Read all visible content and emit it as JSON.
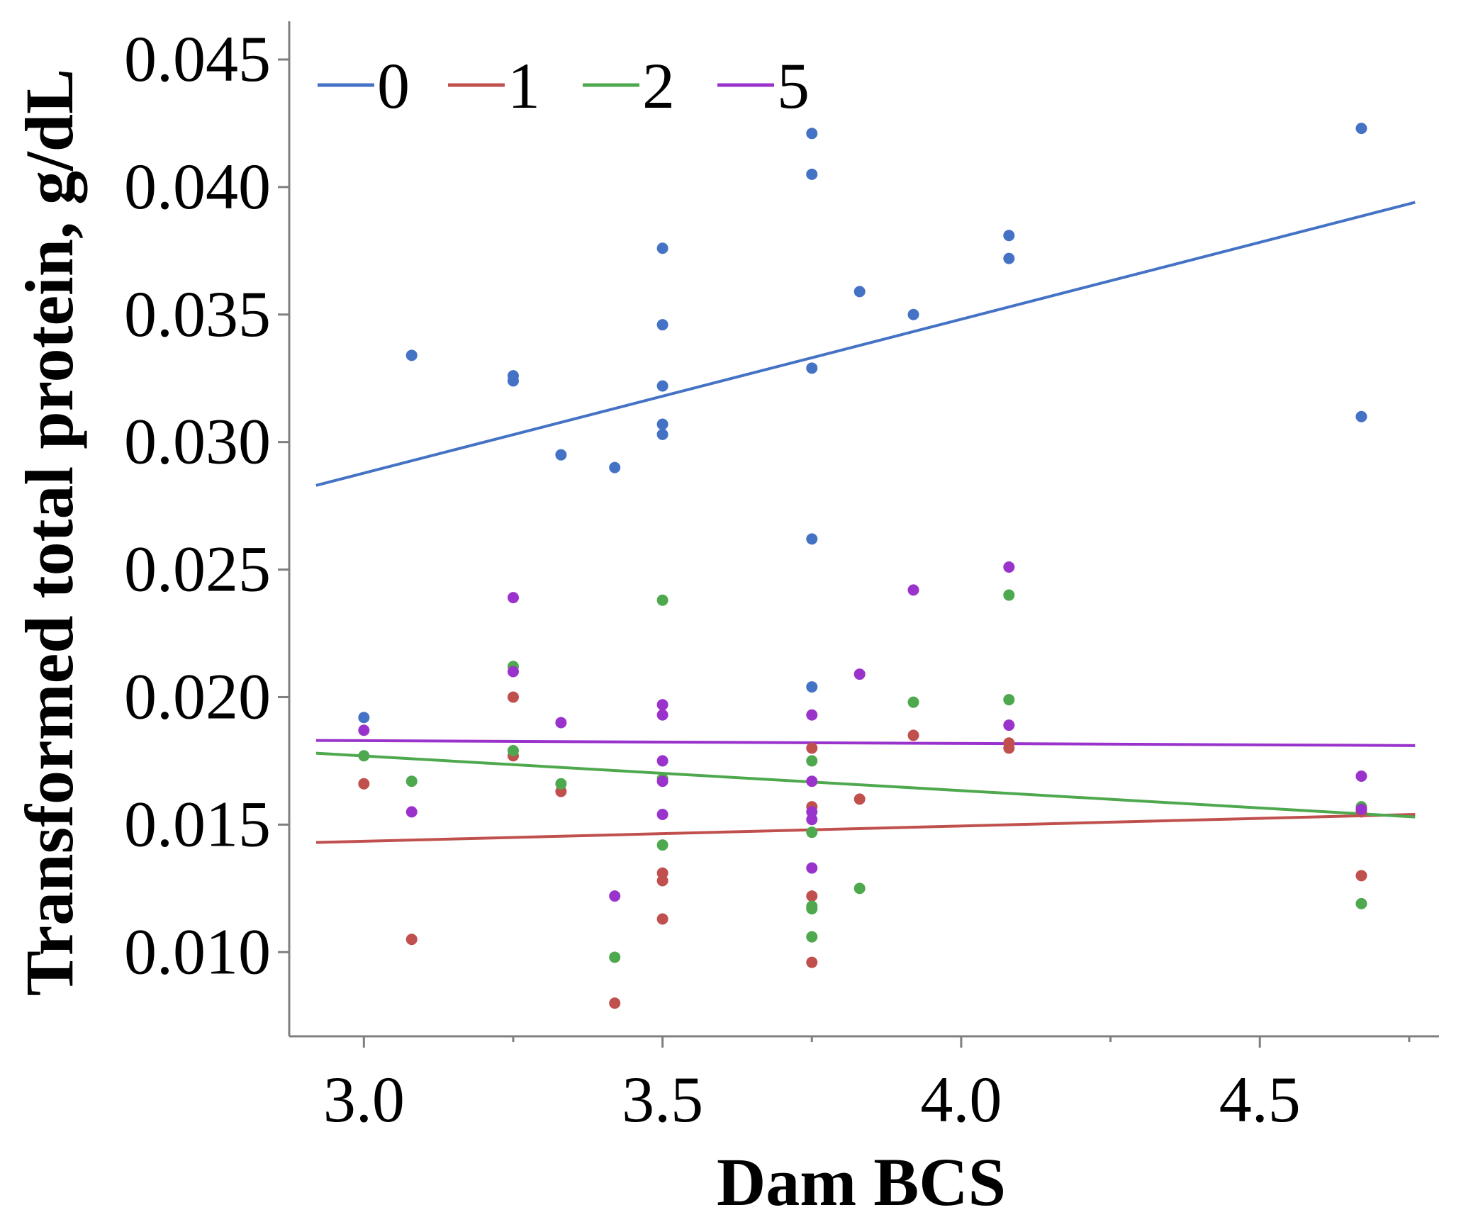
{
  "chart_data": {
    "type": "scatter",
    "title": "",
    "xlabel": "Dam BCS",
    "ylabel": "Transformed total protein, g/dL",
    "xlim": [
      2.875,
      4.8
    ],
    "ylim": [
      0.0067,
      0.0465
    ],
    "xticks": [
      3.0,
      3.5,
      4.0,
      4.5
    ],
    "xtick_labels": [
      "3.0",
      "3.5",
      "4.0",
      "4.5"
    ],
    "xminor": [
      3.25,
      3.75,
      4.25,
      4.75
    ],
    "yticks": [
      0.01,
      0.015,
      0.02,
      0.025,
      0.03,
      0.035,
      0.04,
      0.045
    ],
    "ytick_labels": [
      "0.010",
      "0.015",
      "0.020",
      "0.025",
      "0.030",
      "0.035",
      "0.040",
      "0.045"
    ],
    "legend": {
      "position": "top-left",
      "orientation": "horizontal"
    },
    "series": [
      {
        "name": "0",
        "color": "#4472C4",
        "points": [
          [
            3.0,
            0.0192
          ],
          [
            3.08,
            0.0334
          ],
          [
            3.25,
            0.0326
          ],
          [
            3.25,
            0.0324
          ],
          [
            3.33,
            0.0295
          ],
          [
            3.42,
            0.029
          ],
          [
            3.5,
            0.0376
          ],
          [
            3.5,
            0.0346
          ],
          [
            3.5,
            0.0322
          ],
          [
            3.5,
            0.0307
          ],
          [
            3.5,
            0.0303
          ],
          [
            3.75,
            0.0421
          ],
          [
            3.75,
            0.0405
          ],
          [
            3.75,
            0.0329
          ],
          [
            3.75,
            0.0262
          ],
          [
            3.75,
            0.0204
          ],
          [
            3.83,
            0.0359
          ],
          [
            3.92,
            0.035
          ],
          [
            4.08,
            0.0381
          ],
          [
            4.08,
            0.0372
          ],
          [
            4.67,
            0.0423
          ],
          [
            4.67,
            0.031
          ]
        ],
        "fit": [
          [
            2.92,
            0.0283
          ],
          [
            4.76,
            0.0394
          ]
        ]
      },
      {
        "name": "1",
        "color": "#C0504D",
        "points": [
          [
            3.0,
            0.0166
          ],
          [
            3.08,
            0.0105
          ],
          [
            3.25,
            0.02
          ],
          [
            3.25,
            0.0177
          ],
          [
            3.33,
            0.0163
          ],
          [
            3.42,
            0.008
          ],
          [
            3.5,
            0.0131
          ],
          [
            3.5,
            0.0128
          ],
          [
            3.5,
            0.0113
          ],
          [
            3.75,
            0.018
          ],
          [
            3.75,
            0.0157
          ],
          [
            3.75,
            0.0122
          ],
          [
            3.75,
            0.0096
          ],
          [
            3.83,
            0.016
          ],
          [
            3.92,
            0.0185
          ],
          [
            4.08,
            0.0182
          ],
          [
            4.08,
            0.018
          ],
          [
            4.67,
            0.013
          ],
          [
            4.67,
            0.0155
          ]
        ],
        "fit": [
          [
            2.92,
            0.0143
          ],
          [
            4.76,
            0.0154
          ]
        ]
      },
      {
        "name": "2",
        "color": "#4EA84E",
        "points": [
          [
            3.0,
            0.0177
          ],
          [
            3.08,
            0.0167
          ],
          [
            3.25,
            0.0212
          ],
          [
            3.25,
            0.0179
          ],
          [
            3.33,
            0.0166
          ],
          [
            3.42,
            0.0098
          ],
          [
            3.5,
            0.0238
          ],
          [
            3.5,
            0.0168
          ],
          [
            3.5,
            0.0142
          ],
          [
            3.75,
            0.0175
          ],
          [
            3.75,
            0.0147
          ],
          [
            3.75,
            0.0118
          ],
          [
            3.75,
            0.0117
          ],
          [
            3.75,
            0.0106
          ],
          [
            3.83,
            0.0125
          ],
          [
            3.92,
            0.0198
          ],
          [
            4.08,
            0.024
          ],
          [
            4.08,
            0.0199
          ],
          [
            4.67,
            0.0119
          ],
          [
            4.67,
            0.0157
          ]
        ],
        "fit": [
          [
            2.92,
            0.0178
          ],
          [
            4.76,
            0.0153
          ]
        ]
      },
      {
        "name": "5",
        "color": "#9933CC",
        "points": [
          [
            3.0,
            0.0187
          ],
          [
            3.08,
            0.0155
          ],
          [
            3.25,
            0.0239
          ],
          [
            3.25,
            0.021
          ],
          [
            3.33,
            0.019
          ],
          [
            3.42,
            0.0122
          ],
          [
            3.5,
            0.0197
          ],
          [
            3.5,
            0.0193
          ],
          [
            3.5,
            0.0175
          ],
          [
            3.5,
            0.0167
          ],
          [
            3.5,
            0.0154
          ],
          [
            3.75,
            0.0193
          ],
          [
            3.75,
            0.0167
          ],
          [
            3.75,
            0.0155
          ],
          [
            3.75,
            0.0152
          ],
          [
            3.75,
            0.0133
          ],
          [
            3.83,
            0.0209
          ],
          [
            3.92,
            0.0242
          ],
          [
            4.08,
            0.0251
          ],
          [
            4.08,
            0.0189
          ],
          [
            4.67,
            0.0169
          ],
          [
            4.67,
            0.0156
          ]
        ],
        "fit": [
          [
            2.92,
            0.0183
          ],
          [
            4.76,
            0.0181
          ]
        ]
      }
    ]
  }
}
